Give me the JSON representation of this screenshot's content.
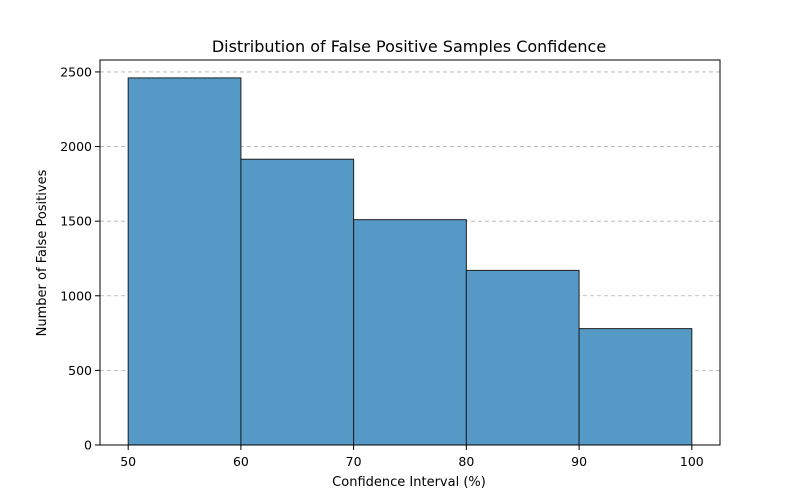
{
  "chart_data": {
    "type": "bar",
    "title": "Distribution of False Positive Samples Confidence",
    "xlabel": "Confidence Interval (%)",
    "ylabel": "Number of False Positives",
    "bins": [
      {
        "x0": 50,
        "x1": 60,
        "value": 2460
      },
      {
        "x0": 60,
        "x1": 70,
        "value": 1915
      },
      {
        "x0": 70,
        "x1": 80,
        "value": 1510
      },
      {
        "x0": 80,
        "x1": 90,
        "value": 1170
      },
      {
        "x0": 90,
        "x1": 100,
        "value": 780
      }
    ],
    "xlim": [
      47.5,
      102.5
    ],
    "ylim": [
      0,
      2580
    ],
    "xticks": [
      50,
      60,
      70,
      80,
      90,
      100
    ],
    "yticks": [
      0,
      500,
      1000,
      1500,
      2000,
      2500
    ],
    "grid": "y-dashed",
    "bar_color": "#5599c7",
    "bar_edge_color": "#1f1f1f"
  }
}
